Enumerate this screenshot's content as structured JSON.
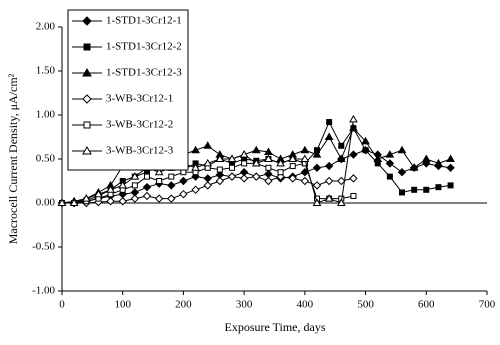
{
  "chart_data": {
    "type": "line",
    "x_label": "Exposure Time, days",
    "y_label": "Macrocell Current Density, μA/cm²",
    "x": [
      0,
      20,
      40,
      60,
      80,
      100,
      120,
      140,
      160,
      180,
      200,
      220,
      240,
      260,
      280,
      300,
      320,
      340,
      360,
      380,
      400,
      420,
      440,
      460,
      480,
      500,
      520,
      540,
      560,
      580,
      600,
      620,
      640
    ],
    "series": [
      {
        "name": "1-STD1-3Cr12-1",
        "color": "#000000",
        "marker": "diamond",
        "filled": true,
        "values": [
          0,
          0,
          0.02,
          0.05,
          0.08,
          0.1,
          0.12,
          0.18,
          0.22,
          0.2,
          0.25,
          0.3,
          0.28,
          0.32,
          0.3,
          0.35,
          0.3,
          0.33,
          0.28,
          0.3,
          0.35,
          0.4,
          0.42,
          0.5,
          0.55,
          0.6,
          0.55,
          0.45,
          0.35,
          0.4,
          0.45,
          0.42,
          0.4
        ]
      },
      {
        "name": "1-STD1-3Cr12-2",
        "color": "#000000",
        "marker": "square",
        "filled": true,
        "values": [
          0,
          0,
          0.03,
          0.08,
          0.15,
          0.25,
          0.3,
          0.35,
          0.45,
          0.4,
          0.38,
          0.45,
          0.42,
          0.5,
          0.45,
          0.5,
          0.48,
          0.5,
          0.45,
          0.5,
          0.45,
          0.6,
          0.92,
          0.65,
          0.85,
          0.6,
          0.45,
          0.3,
          0.12,
          0.15,
          0.15,
          0.18,
          0.2
        ]
      },
      {
        "name": "1-STD1-3Cr12-3",
        "color": "#000000",
        "marker": "triangle",
        "filled": true,
        "values": [
          0,
          0.02,
          0.05,
          0.12,
          0.2,
          0.42,
          0.5,
          0.55,
          0.68,
          0.5,
          0.55,
          0.6,
          0.65,
          0.55,
          0.5,
          0.55,
          0.6,
          0.58,
          0.5,
          0.55,
          0.6,
          0.55,
          0.75,
          0.5,
          0.85,
          0.7,
          0.5,
          0.55,
          0.6,
          0.4,
          0.5,
          0.45,
          0.5
        ]
      },
      {
        "name": "3-WB-3Cr12-1",
        "color": "#000000",
        "marker": "diamond",
        "filled": false,
        "values": [
          0,
          0,
          0,
          0.01,
          0.02,
          0.02,
          0.05,
          0.08,
          0.05,
          0.05,
          0.1,
          0.15,
          0.2,
          0.25,
          0.3,
          0.28,
          0.3,
          0.25,
          0.3,
          0.28,
          0.25,
          0.2,
          0.25,
          0.25,
          0.28,
          null,
          null,
          null,
          null,
          null,
          null,
          null,
          null
        ]
      },
      {
        "name": "3-WB-3Cr12-2",
        "color": "#000000",
        "marker": "square",
        "filled": false,
        "values": [
          0,
          0,
          0.02,
          0.05,
          0.1,
          0.15,
          0.2,
          0.3,
          0.25,
          0.3,
          0.35,
          0.35,
          0.4,
          0.38,
          0.4,
          0.45,
          0.45,
          0.4,
          0.35,
          0.42,
          0.45,
          0.05,
          0.05,
          0.05,
          0.08,
          null,
          null,
          null,
          null,
          null,
          null,
          null,
          null
        ]
      },
      {
        "name": "3-WB-3Cr12-3",
        "color": "#000000",
        "marker": "triangle",
        "filled": false,
        "values": [
          0,
          0,
          0.05,
          0.1,
          0.15,
          0.2,
          0.3,
          0.4,
          0.35,
          0.4,
          0.45,
          0.4,
          0.45,
          0.5,
          0.5,
          0.55,
          0.45,
          0.5,
          0.45,
          0.5,
          0.5,
          0.0,
          0.05,
          0.0,
          0.95,
          null,
          null,
          null,
          null,
          null,
          null,
          null,
          null
        ]
      }
    ],
    "xlim": [
      0,
      700
    ],
    "xticks": [
      0,
      100,
      200,
      300,
      400,
      500,
      600,
      700
    ],
    "ylim": [
      -1,
      2
    ],
    "yticks": [
      {
        "value": -1,
        "label": "-1.00"
      },
      {
        "value": -0.5,
        "label": "-0.50"
      },
      {
        "value": 0,
        "label": "0.00"
      },
      {
        "value": 0.5,
        "label": "0.50"
      },
      {
        "value": 1,
        "label": "1.00"
      },
      {
        "value": 1.5,
        "label": "1.50"
      },
      {
        "value": 2,
        "label": "2.00"
      }
    ],
    "legend": "upper left",
    "grid": false
  }
}
